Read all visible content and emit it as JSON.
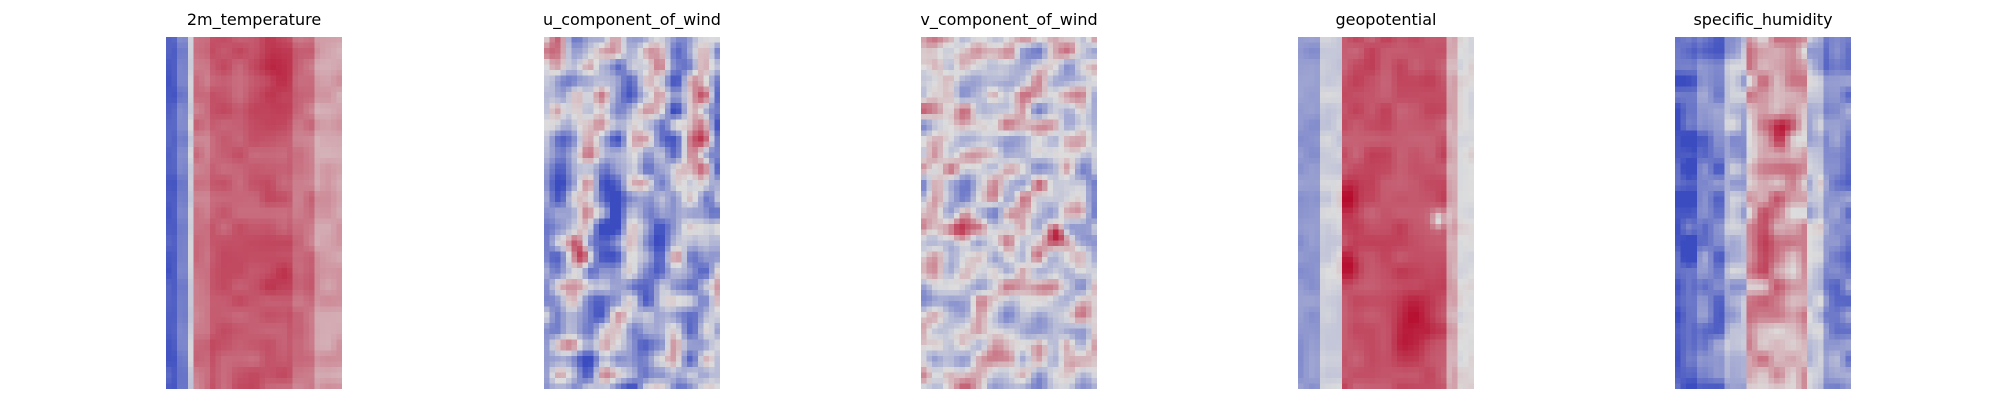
{
  "chart_data": [
    {
      "type": "heatmap",
      "title": "2m_temperature",
      "colormap": "coolwarm",
      "pattern": "temp"
    },
    {
      "type": "heatmap",
      "title": "u_component_of_wind",
      "colormap": "coolwarm",
      "pattern": "uwind"
    },
    {
      "type": "heatmap",
      "title": "v_component_of_wind",
      "colormap": "coolwarm",
      "pattern": "vwind"
    },
    {
      "type": "heatmap",
      "title": "geopotential",
      "colormap": "coolwarm",
      "pattern": "geo"
    },
    {
      "type": "heatmap",
      "title": "specific_humidity",
      "colormap": "coolwarm",
      "pattern": "humid"
    }
  ],
  "colors": {
    "cold": "#3b4cc0",
    "neutral": "#dddddd",
    "warm": "#b40426"
  }
}
